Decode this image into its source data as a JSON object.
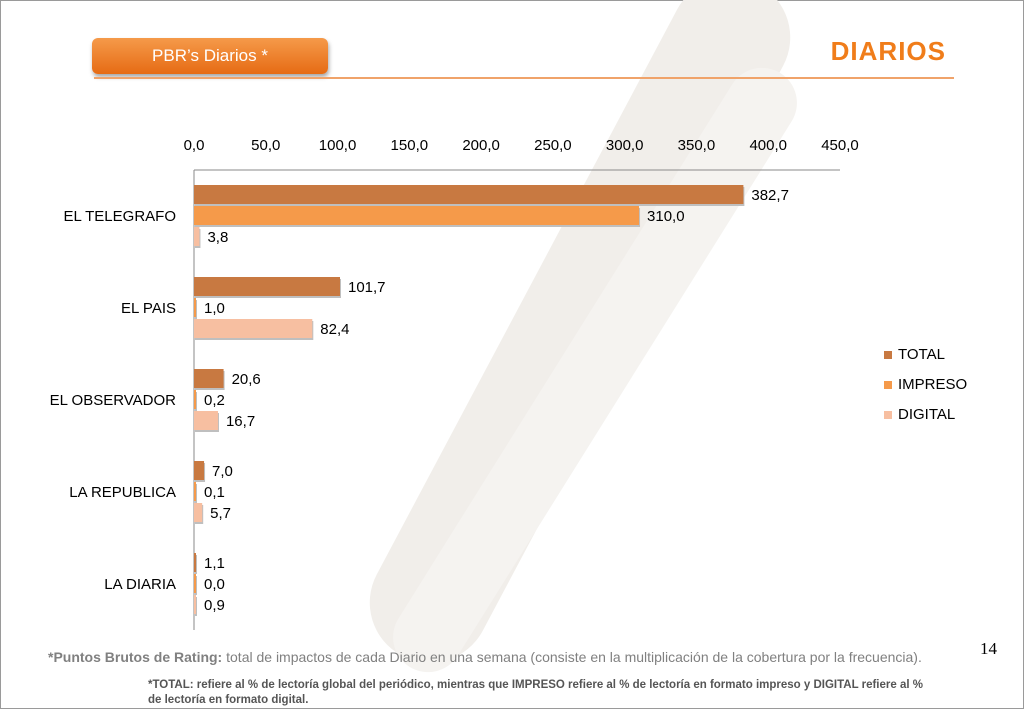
{
  "header": {
    "pill_label": "PBR’s Diarios  *",
    "title": "DIARIOS"
  },
  "colors": {
    "total": "#c87941",
    "impreso": "#f59a4a",
    "digital": "#f7bfa1",
    "accent": "#f07d1a"
  },
  "chart_data": {
    "type": "bar",
    "orientation": "horizontal",
    "categories": [
      "EL TELEGRAFO",
      "EL PAIS",
      "EL OBSERVADOR",
      "LA REPUBLICA",
      "LA DIARIA"
    ],
    "series": [
      {
        "name": "TOTAL",
        "values": [
          382.7,
          101.7,
          20.6,
          7.0,
          1.1
        ],
        "labels": [
          "382,7",
          "101,7",
          "20,6",
          "7,0",
          "1,1"
        ]
      },
      {
        "name": "IMPRESO",
        "values": [
          310.0,
          1.0,
          0.2,
          0.1,
          0.0
        ],
        "labels": [
          "310,0",
          "1,0",
          "0,2",
          "0,1",
          "0,0"
        ]
      },
      {
        "name": "DIGITAL",
        "values": [
          3.8,
          82.4,
          16.7,
          5.7,
          0.9
        ],
        "labels": [
          "3,8",
          "82,4",
          "16,7",
          "5,7",
          "0,9"
        ]
      }
    ],
    "xlim": [
      0,
      450
    ],
    "xticks": [
      0,
      50,
      100,
      150,
      200,
      250,
      300,
      350,
      400,
      450
    ],
    "xtick_labels": [
      "0,0",
      "50,0",
      "100,0",
      "150,0",
      "200,0",
      "250,0",
      "300,0",
      "350,0",
      "400,0",
      "450,0"
    ],
    "axis_position": "top",
    "grid": false,
    "legend_position": "right"
  },
  "footer": {
    "page_number": "14",
    "note_bold": "*Puntos Brutos de Rating:",
    "note_text": " total de impactos de cada Diario en una semana (consiste en la multiplicación de la cobertura por la frecuencia).",
    "note2": "*TOTAL: refiere al % de lectoría global del periódico, mientras que IMPRESO refiere al % de lectoría en formato impreso y DIGITAL refiere al % de lectoría en formato digital."
  }
}
